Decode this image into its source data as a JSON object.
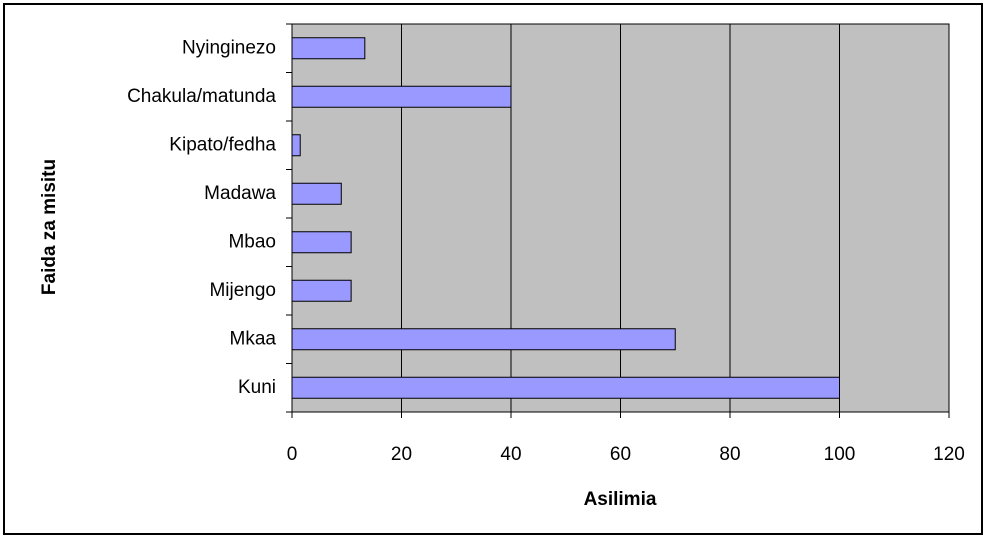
{
  "chart_data": {
    "type": "bar",
    "orientation": "horizontal",
    "categories": [
      "Kuni",
      "Mkaa",
      "Mijengo",
      "Mbao",
      "Madawa",
      "Kipato/fedha",
      "Chakula/matunda",
      "Nyinginezo"
    ],
    "values": [
      100,
      70,
      10.8,
      10.8,
      9,
      1.5,
      40,
      13.3
    ],
    "color": "#9999ff",
    "xlim": [
      0,
      120
    ],
    "xticks": [
      0,
      20,
      40,
      60,
      80,
      100,
      120
    ],
    "xlabel": "Asilimia",
    "ylabel": "Faida za misitu",
    "grid": true
  }
}
